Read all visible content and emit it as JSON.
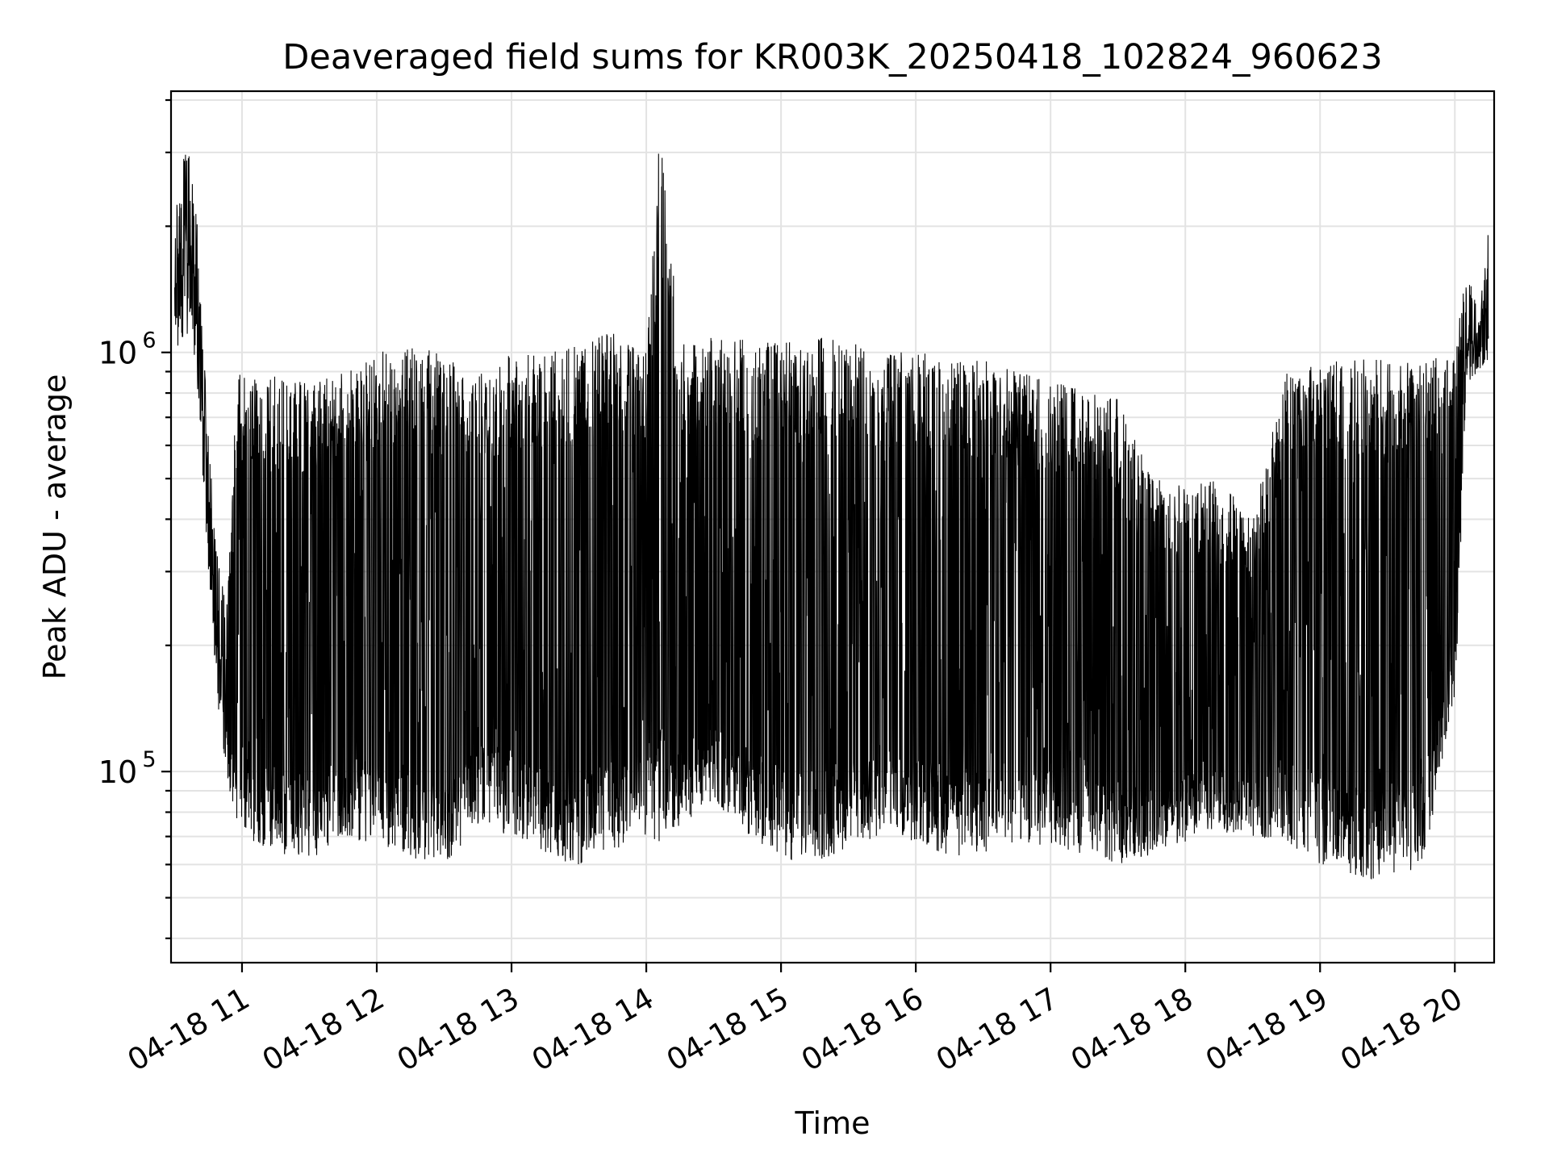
{
  "chart_data": {
    "type": "line",
    "title": "Deaveraged field sums for KR003K_20250418_102824_960623",
    "xlabel": "Time",
    "ylabel": "Peak ADU - average",
    "x_axis_type": "time",
    "xlim": [
      "2025-04-18T10:28:24",
      "2025-04-18T20:17:30"
    ],
    "x_ticks": [
      "2025-04-18T11:00",
      "2025-04-18T12:00",
      "2025-04-18T13:00",
      "2025-04-18T14:00",
      "2025-04-18T15:00",
      "2025-04-18T16:00",
      "2025-04-18T17:00",
      "2025-04-18T18:00",
      "2025-04-18T19:00",
      "2025-04-18T20:00"
    ],
    "x_tick_labels": [
      "04-18 11",
      "04-18 12",
      "04-18 13",
      "04-18 14",
      "04-18 15",
      "04-18 16",
      "04-18 17",
      "04-18 18",
      "04-18 19",
      "04-18 20"
    ],
    "x_tick_label_rotation_deg": 30,
    "y_scale": "log",
    "ylim": [
      35000,
      4200000
    ],
    "y_ticks": [
      100000,
      1000000
    ],
    "y_tick_base": "10",
    "y_tick_exponents": [
      "5",
      "6"
    ],
    "grid": true,
    "legend": "none",
    "line_color": "#000000",
    "series": [
      {
        "x": [
          "2025-04-18T10:30",
          "2025-04-18T10:35",
          "2025-04-18T10:40",
          "2025-04-18T10:45",
          "2025-04-18T10:50",
          "2025-04-18T10:53",
          "2025-04-18T10:58",
          "2025-04-18T11:05",
          "2025-04-18T11:15",
          "2025-04-18T11:30",
          "2025-04-18T11:45",
          "2025-04-18T12:00",
          "2025-04-18T12:15",
          "2025-04-18T12:30",
          "2025-04-18T12:45",
          "2025-04-18T13:00",
          "2025-04-18T13:15",
          "2025-04-18T13:30",
          "2025-04-18T13:45",
          "2025-04-18T14:00",
          "2025-04-18T14:06",
          "2025-04-18T14:15",
          "2025-04-18T14:30",
          "2025-04-18T14:45",
          "2025-04-18T15:00",
          "2025-04-18T15:15",
          "2025-04-18T15:30",
          "2025-04-18T15:45",
          "2025-04-18T16:00",
          "2025-04-18T16:15",
          "2025-04-18T16:30",
          "2025-04-18T16:45",
          "2025-04-18T17:00",
          "2025-04-18T17:15",
          "2025-04-18T17:30",
          "2025-04-18T17:45",
          "2025-04-18T18:00",
          "2025-04-18T18:15",
          "2025-04-18T18:30",
          "2025-04-18T18:45",
          "2025-04-18T19:00",
          "2025-04-18T19:15",
          "2025-04-18T19:30",
          "2025-04-18T19:45",
          "2025-04-18T20:00",
          "2025-04-18T20:05",
          "2025-04-18T20:10",
          "2025-04-18T20:15"
        ],
        "low": [
          1000000,
          1100000,
          850000,
          300000,
          130000,
          95000,
          75000,
          68000,
          64000,
          62000,
          65000,
          68000,
          62000,
          58000,
          75000,
          70000,
          62000,
          60000,
          65000,
          70000,
          65000,
          72000,
          85000,
          70000,
          62000,
          60000,
          66000,
          70000,
          68000,
          62000,
          64000,
          68000,
          66000,
          62000,
          60000,
          62000,
          68000,
          72000,
          70000,
          68000,
          60000,
          55000,
          56000,
          58000,
          140000,
          800000,
          900000,
          950000
        ],
        "high": [
          2100000,
          3300000,
          2200000,
          650000,
          300000,
          250000,
          900000,
          880000,
          880000,
          850000,
          950000,
          1000000,
          1030000,
          1000000,
          900000,
          990000,
          1000000,
          1050000,
          1120000,
          1000000,
          3400000,
          1050000,
          1100000,
          1070000,
          1050000,
          1100000,
          1080000,
          1000000,
          1000000,
          980000,
          960000,
          900000,
          880000,
          800000,
          780000,
          500000,
          480000,
          500000,
          400000,
          920000,
          930000,
          1000000,
          960000,
          950000,
          1000000,
          1600000,
          1300000,
          2000000
        ]
      }
    ]
  }
}
